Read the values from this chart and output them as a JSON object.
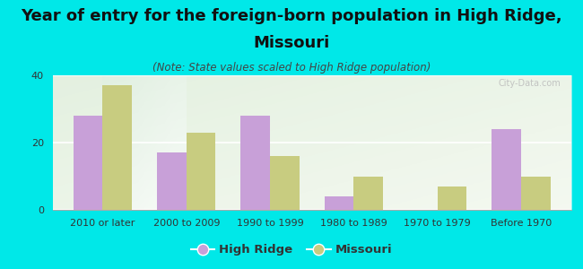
{
  "title_line1": "Year of entry for the foreign-born population in High Ridge,",
  "title_line2": "Missouri",
  "subtitle": "(Note: State values scaled to High Ridge population)",
  "categories": [
    "2010 or later",
    "2000 to 2009",
    "1990 to 1999",
    "1980 to 1989",
    "1970 to 1979",
    "Before 1970"
  ],
  "high_ridge": [
    28,
    17,
    28,
    4,
    0,
    24
  ],
  "missouri": [
    37,
    23,
    16,
    10,
    7,
    10
  ],
  "high_ridge_color": "#c8a0d8",
  "missouri_color": "#c8cc80",
  "background_color": "#00e8e8",
  "plot_bg_color": "#e8f2e0",
  "ylim": [
    0,
    40
  ],
  "yticks": [
    0,
    20,
    40
  ],
  "bar_width": 0.35,
  "legend_labels": [
    "High Ridge",
    "Missouri"
  ],
  "watermark": "City-Data.com",
  "title_fontsize": 13,
  "subtitle_fontsize": 8.5,
  "tick_fontsize": 8
}
